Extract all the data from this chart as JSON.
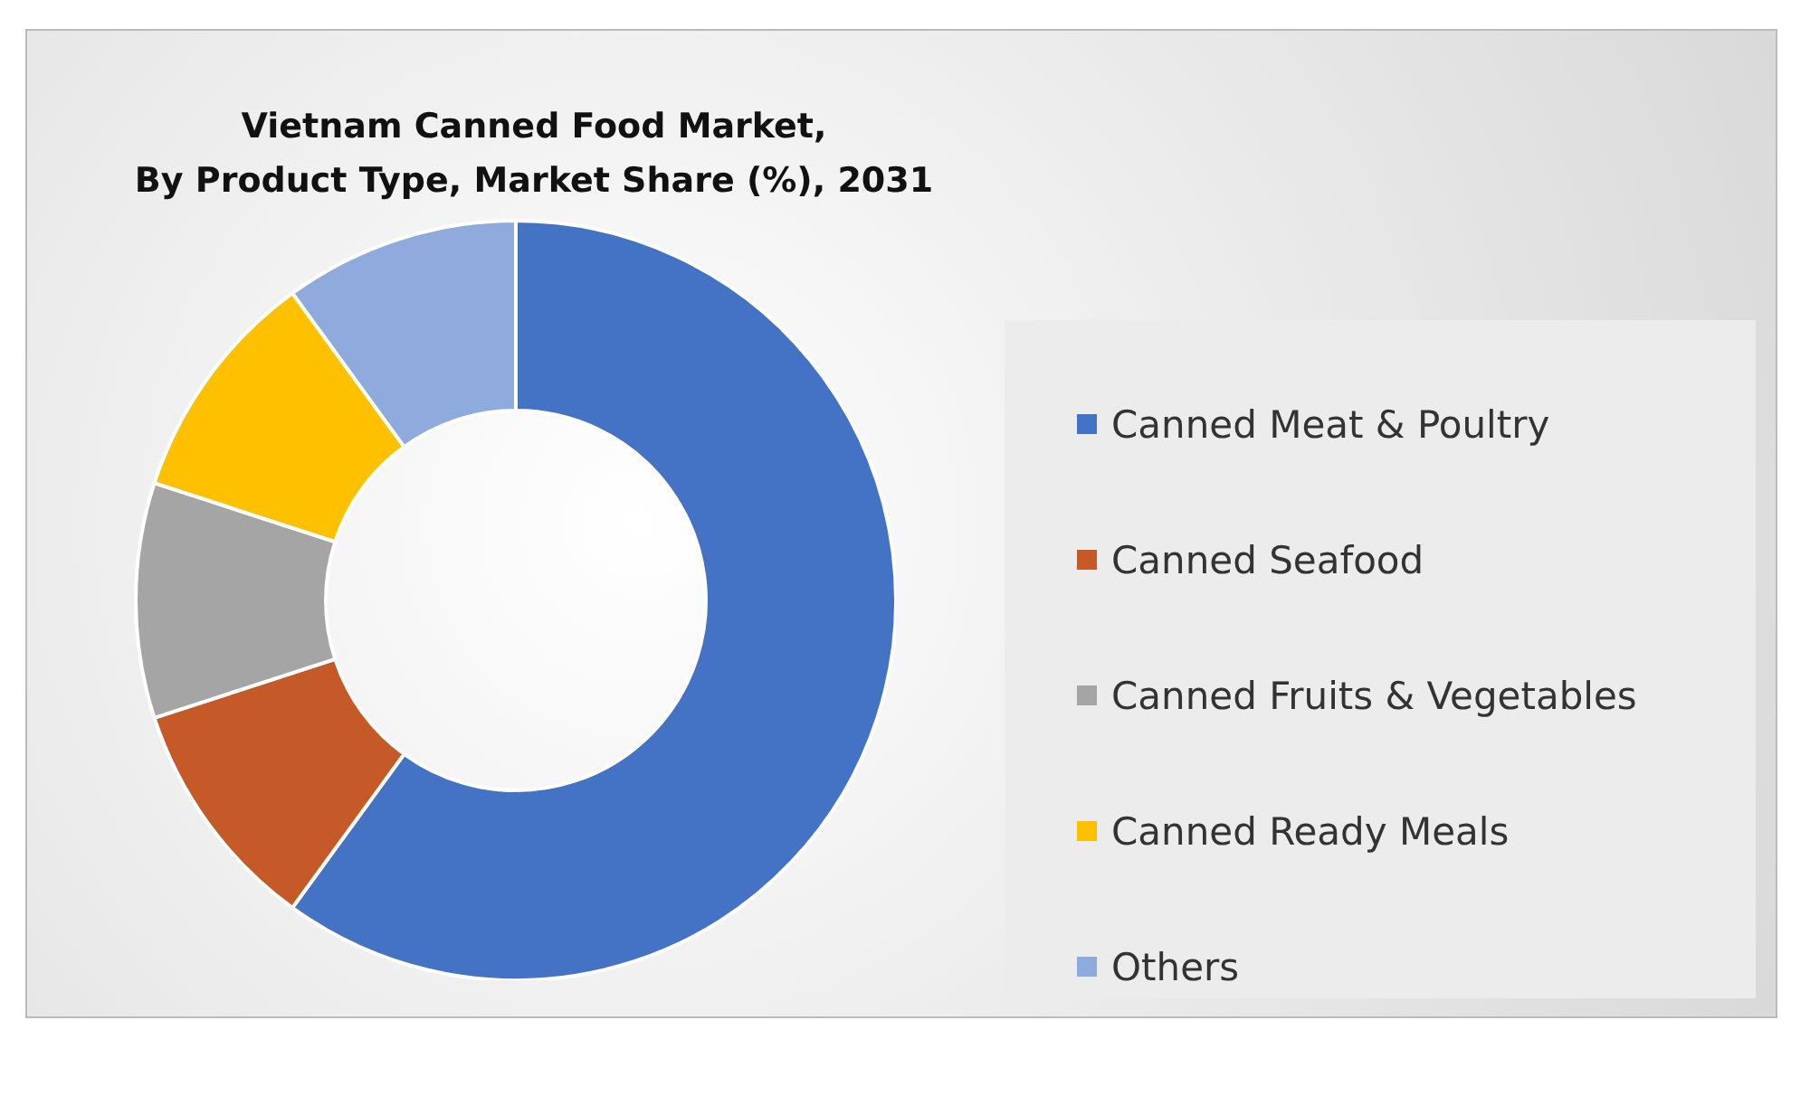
{
  "chart_data": {
    "type": "donut",
    "title": "Vietnam Canned Food Market,\nBy Product Type, Market Share (%), 2031",
    "categories": [
      "Canned Meat & Poultry",
      "Canned Seafood",
      "Canned Fruits & Vegetables",
      "Canned Ready Meals",
      "Others"
    ],
    "values": [
      60,
      10,
      10,
      10,
      10
    ],
    "colors": [
      "#4472c4",
      "#c55a28",
      "#a5a5a5",
      "#ffc000",
      "#8faadc"
    ],
    "legend": "right"
  }
}
